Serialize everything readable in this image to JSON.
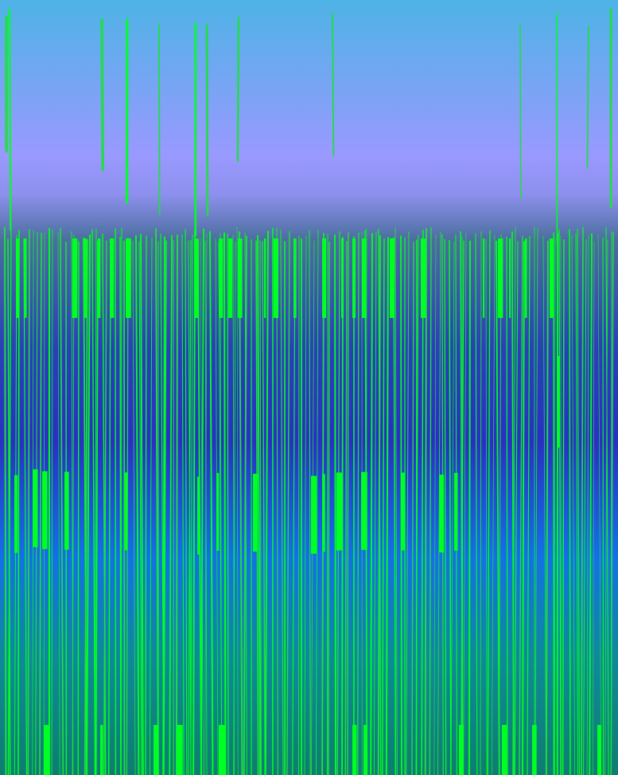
{
  "artwork": {
    "kind": "glitch-art",
    "palette": {
      "top": "#4eb3e6",
      "mid_upper": "#9999ff",
      "mid": "#2a36c4",
      "mid_lower": "#1479e6",
      "bottom": "#0e7d7d",
      "stroke": "#00ff22",
      "stroke_alt": "#22dd44"
    }
  }
}
